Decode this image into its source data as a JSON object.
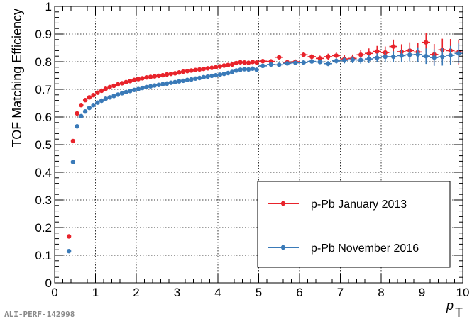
{
  "watermark": "ALI-PERF-142998",
  "chart_data": {
    "type": "scatter",
    "title": "",
    "xlabel": "p",
    "xlabel_subscript": "T",
    "ylabel": "TOF Matching Efficiency",
    "xlim": [
      0,
      10
    ],
    "ylim": [
      0,
      1
    ],
    "xticks": [
      0,
      1,
      2,
      3,
      4,
      5,
      6,
      7,
      8,
      9,
      10
    ],
    "yticks": [
      0,
      0.1,
      0.2,
      0.3,
      0.4,
      0.5,
      0.6,
      0.7,
      0.8,
      0.9,
      1
    ],
    "ytick_labels": [
      "0",
      "0.1",
      "0.2",
      "0.3",
      "0.4",
      "0.5",
      "0.6",
      "0.7",
      "0.8",
      "0.9",
      "1"
    ],
    "grid": true,
    "legend_position": "bottom-right",
    "series": [
      {
        "name": "p-Pb January 2013",
        "color": "#e8232b",
        "x": [
          0.35,
          0.45,
          0.55,
          0.65,
          0.75,
          0.85,
          0.95,
          1.05,
          1.15,
          1.25,
          1.35,
          1.45,
          1.55,
          1.65,
          1.75,
          1.85,
          1.95,
          2.05,
          2.15,
          2.25,
          2.35,
          2.45,
          2.55,
          2.65,
          2.75,
          2.85,
          2.95,
          3.05,
          3.15,
          3.25,
          3.35,
          3.45,
          3.55,
          3.65,
          3.75,
          3.85,
          3.95,
          4.05,
          4.15,
          4.25,
          4.35,
          4.45,
          4.55,
          4.65,
          4.75,
          4.85,
          4.95,
          5.1,
          5.3,
          5.5,
          5.7,
          5.9,
          6.1,
          6.3,
          6.5,
          6.7,
          6.9,
          7.1,
          7.3,
          7.5,
          7.7,
          7.9,
          8.1,
          8.3,
          8.5,
          8.7,
          8.9,
          9.1,
          9.3,
          9.5,
          9.7,
          9.9
        ],
        "y": [
          0.168,
          0.513,
          0.613,
          0.643,
          0.661,
          0.671,
          0.679,
          0.688,
          0.695,
          0.702,
          0.708,
          0.713,
          0.718,
          0.722,
          0.726,
          0.73,
          0.734,
          0.737,
          0.74,
          0.743,
          0.745,
          0.747,
          0.749,
          0.751,
          0.754,
          0.756,
          0.758,
          0.761,
          0.764,
          0.766,
          0.768,
          0.77,
          0.772,
          0.774,
          0.776,
          0.778,
          0.78,
          0.783,
          0.786,
          0.788,
          0.79,
          0.795,
          0.798,
          0.797,
          0.796,
          0.799,
          0.797,
          0.802,
          0.801,
          0.816,
          0.798,
          0.8,
          0.825,
          0.818,
          0.812,
          0.818,
          0.822,
          0.81,
          0.812,
          0.825,
          0.83,
          0.837,
          0.833,
          0.855,
          0.836,
          0.84,
          0.835,
          0.87,
          0.826,
          0.843,
          0.84,
          0.835
        ],
        "xerr": [
          0.05,
          0.05,
          0.05,
          0.05,
          0.05,
          0.05,
          0.05,
          0.05,
          0.05,
          0.05,
          0.05,
          0.05,
          0.05,
          0.05,
          0.05,
          0.05,
          0.05,
          0.05,
          0.05,
          0.05,
          0.05,
          0.05,
          0.05,
          0.05,
          0.05,
          0.05,
          0.05,
          0.05,
          0.05,
          0.05,
          0.05,
          0.05,
          0.05,
          0.05,
          0.05,
          0.05,
          0.05,
          0.05,
          0.05,
          0.05,
          0.05,
          0.05,
          0.05,
          0.05,
          0.05,
          0.05,
          0.05,
          0.1,
          0.1,
          0.1,
          0.1,
          0.1,
          0.1,
          0.1,
          0.1,
          0.1,
          0.1,
          0.1,
          0.1,
          0.1,
          0.1,
          0.1,
          0.1,
          0.1,
          0.1,
          0.1,
          0.1,
          0.1,
          0.1,
          0.1,
          0.1,
          0.1
        ],
        "yerr": [
          0.003,
          0.003,
          0.003,
          0.003,
          0.003,
          0.003,
          0.003,
          0.003,
          0.003,
          0.003,
          0.003,
          0.003,
          0.003,
          0.003,
          0.003,
          0.003,
          0.003,
          0.003,
          0.003,
          0.003,
          0.003,
          0.003,
          0.003,
          0.003,
          0.003,
          0.003,
          0.003,
          0.003,
          0.003,
          0.003,
          0.003,
          0.003,
          0.003,
          0.003,
          0.003,
          0.003,
          0.003,
          0.003,
          0.003,
          0.003,
          0.003,
          0.003,
          0.003,
          0.003,
          0.004,
          0.004,
          0.004,
          0.005,
          0.005,
          0.006,
          0.006,
          0.007,
          0.008,
          0.009,
          0.01,
          0.011,
          0.012,
          0.013,
          0.014,
          0.016,
          0.018,
          0.02,
          0.022,
          0.025,
          0.027,
          0.03,
          0.032,
          0.035,
          0.038,
          0.04,
          0.042,
          0.045
        ]
      },
      {
        "name": "p-Pb November 2016",
        "color": "#3a7ab8",
        "x": [
          0.35,
          0.45,
          0.55,
          0.65,
          0.75,
          0.85,
          0.95,
          1.05,
          1.15,
          1.25,
          1.35,
          1.45,
          1.55,
          1.65,
          1.75,
          1.85,
          1.95,
          2.05,
          2.15,
          2.25,
          2.35,
          2.45,
          2.55,
          2.65,
          2.75,
          2.85,
          2.95,
          3.05,
          3.15,
          3.25,
          3.35,
          3.45,
          3.55,
          3.65,
          3.75,
          3.85,
          3.95,
          4.05,
          4.15,
          4.25,
          4.35,
          4.45,
          4.55,
          4.65,
          4.75,
          4.85,
          4.95,
          5.1,
          5.3,
          5.5,
          5.7,
          5.9,
          6.1,
          6.3,
          6.5,
          6.7,
          6.9,
          7.1,
          7.3,
          7.5,
          7.7,
          7.9,
          8.1,
          8.3,
          8.5,
          8.7,
          8.9,
          9.1,
          9.3,
          9.5,
          9.7,
          9.9
        ],
        "y": [
          0.115,
          0.437,
          0.566,
          0.603,
          0.62,
          0.633,
          0.643,
          0.652,
          0.659,
          0.666,
          0.671,
          0.676,
          0.681,
          0.686,
          0.69,
          0.694,
          0.698,
          0.701,
          0.705,
          0.708,
          0.711,
          0.714,
          0.716,
          0.719,
          0.721,
          0.724,
          0.726,
          0.729,
          0.731,
          0.734,
          0.736,
          0.739,
          0.741,
          0.744,
          0.746,
          0.749,
          0.751,
          0.753,
          0.756,
          0.759,
          0.763,
          0.768,
          0.771,
          0.773,
          0.772,
          0.775,
          0.771,
          0.785,
          0.79,
          0.789,
          0.794,
          0.796,
          0.797,
          0.801,
          0.799,
          0.793,
          0.803,
          0.805,
          0.807,
          0.806,
          0.81,
          0.814,
          0.818,
          0.818,
          0.822,
          0.825,
          0.826,
          0.82,
          0.815,
          0.818,
          0.823,
          0.83
        ],
        "xerr": [
          0.05,
          0.05,
          0.05,
          0.05,
          0.05,
          0.05,
          0.05,
          0.05,
          0.05,
          0.05,
          0.05,
          0.05,
          0.05,
          0.05,
          0.05,
          0.05,
          0.05,
          0.05,
          0.05,
          0.05,
          0.05,
          0.05,
          0.05,
          0.05,
          0.05,
          0.05,
          0.05,
          0.05,
          0.05,
          0.05,
          0.05,
          0.05,
          0.05,
          0.05,
          0.05,
          0.05,
          0.05,
          0.05,
          0.05,
          0.05,
          0.05,
          0.05,
          0.05,
          0.05,
          0.05,
          0.05,
          0.05,
          0.1,
          0.1,
          0.1,
          0.1,
          0.1,
          0.1,
          0.1,
          0.1,
          0.1,
          0.1,
          0.1,
          0.1,
          0.1,
          0.1,
          0.1,
          0.1,
          0.1,
          0.1,
          0.1,
          0.1,
          0.1,
          0.1,
          0.1,
          0.1,
          0.1
        ],
        "yerr": [
          0.002,
          0.002,
          0.002,
          0.002,
          0.002,
          0.002,
          0.002,
          0.002,
          0.002,
          0.002,
          0.002,
          0.002,
          0.002,
          0.002,
          0.002,
          0.002,
          0.002,
          0.002,
          0.002,
          0.002,
          0.002,
          0.002,
          0.002,
          0.002,
          0.002,
          0.002,
          0.002,
          0.002,
          0.002,
          0.002,
          0.002,
          0.002,
          0.002,
          0.002,
          0.002,
          0.002,
          0.002,
          0.002,
          0.002,
          0.002,
          0.002,
          0.002,
          0.002,
          0.002,
          0.003,
          0.003,
          0.003,
          0.004,
          0.004,
          0.005,
          0.005,
          0.006,
          0.007,
          0.007,
          0.008,
          0.009,
          0.01,
          0.011,
          0.012,
          0.013,
          0.015,
          0.016,
          0.018,
          0.02,
          0.022,
          0.024,
          0.026,
          0.028,
          0.03,
          0.032,
          0.034,
          0.036
        ]
      }
    ]
  }
}
